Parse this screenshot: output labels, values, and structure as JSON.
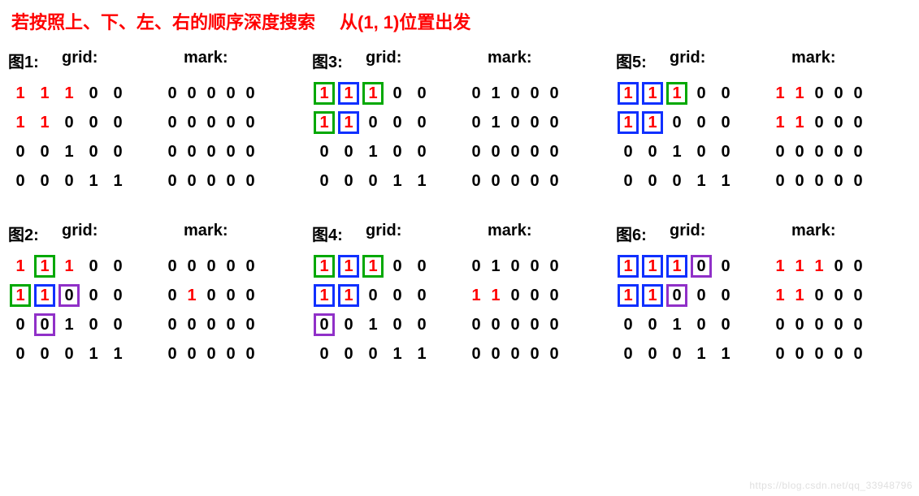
{
  "title_left": "若按照上、下、左、右的顺序深度搜索",
  "title_right": "从(1, 1)位置出发",
  "colors": {
    "text_red": "#ff0000",
    "text_black": "#000000",
    "box_green": "#00a800",
    "box_blue": "#1030ff",
    "box_purple": "#9030c8",
    "background": "#ffffff",
    "watermark": "#e0e0e0"
  },
  "watermark": "https://blog.csdn.net/qq_33948796",
  "labels": {
    "grid": "grid:",
    "mark": "mark:"
  },
  "panels": [
    {
      "fig": "图1:",
      "grid": [
        [
          {
            "v": "1",
            "c": "red"
          },
          {
            "v": "1",
            "c": "red"
          },
          {
            "v": "1",
            "c": "red"
          },
          {
            "v": "0"
          },
          {
            "v": "0"
          }
        ],
        [
          {
            "v": "1",
            "c": "red"
          },
          {
            "v": "1",
            "c": "red"
          },
          {
            "v": "0"
          },
          {
            "v": "0"
          },
          {
            "v": "0"
          }
        ],
        [
          {
            "v": "0"
          },
          {
            "v": "0"
          },
          {
            "v": "1"
          },
          {
            "v": "0"
          },
          {
            "v": "0"
          }
        ],
        [
          {
            "v": "0"
          },
          {
            "v": "0"
          },
          {
            "v": "0"
          },
          {
            "v": "1"
          },
          {
            "v": "1"
          }
        ]
      ],
      "mark": [
        [
          {
            "v": "0"
          },
          {
            "v": "0"
          },
          {
            "v": "0"
          },
          {
            "v": "0"
          },
          {
            "v": "0"
          }
        ],
        [
          {
            "v": "0"
          },
          {
            "v": "0"
          },
          {
            "v": "0"
          },
          {
            "v": "0"
          },
          {
            "v": "0"
          }
        ],
        [
          {
            "v": "0"
          },
          {
            "v": "0"
          },
          {
            "v": "0"
          },
          {
            "v": "0"
          },
          {
            "v": "0"
          }
        ],
        [
          {
            "v": "0"
          },
          {
            "v": "0"
          },
          {
            "v": "0"
          },
          {
            "v": "0"
          },
          {
            "v": "0"
          }
        ]
      ]
    },
    {
      "fig": "图3:",
      "grid": [
        [
          {
            "v": "1",
            "c": "red",
            "b": "green"
          },
          {
            "v": "1",
            "c": "red",
            "b": "blue"
          },
          {
            "v": "1",
            "c": "red",
            "b": "green"
          },
          {
            "v": "0"
          },
          {
            "v": "0"
          }
        ],
        [
          {
            "v": "1",
            "c": "red",
            "b": "green"
          },
          {
            "v": "1",
            "c": "red",
            "b": "blue"
          },
          {
            "v": "0"
          },
          {
            "v": "0"
          },
          {
            "v": "0"
          }
        ],
        [
          {
            "v": "0"
          },
          {
            "v": "0"
          },
          {
            "v": "1"
          },
          {
            "v": "0"
          },
          {
            "v": "0"
          }
        ],
        [
          {
            "v": "0"
          },
          {
            "v": "0"
          },
          {
            "v": "0"
          },
          {
            "v": "1"
          },
          {
            "v": "1"
          }
        ]
      ],
      "mark": [
        [
          {
            "v": "0"
          },
          {
            "v": "1"
          },
          {
            "v": "0"
          },
          {
            "v": "0"
          },
          {
            "v": "0"
          }
        ],
        [
          {
            "v": "0"
          },
          {
            "v": "1"
          },
          {
            "v": "0"
          },
          {
            "v": "0"
          },
          {
            "v": "0"
          }
        ],
        [
          {
            "v": "0"
          },
          {
            "v": "0"
          },
          {
            "v": "0"
          },
          {
            "v": "0"
          },
          {
            "v": "0"
          }
        ],
        [
          {
            "v": "0"
          },
          {
            "v": "0"
          },
          {
            "v": "0"
          },
          {
            "v": "0"
          },
          {
            "v": "0"
          }
        ]
      ]
    },
    {
      "fig": "图5:",
      "grid": [
        [
          {
            "v": "1",
            "c": "red",
            "b": "blue"
          },
          {
            "v": "1",
            "c": "red",
            "b": "blue"
          },
          {
            "v": "1",
            "c": "red",
            "b": "green"
          },
          {
            "v": "0"
          },
          {
            "v": "0"
          }
        ],
        [
          {
            "v": "1",
            "c": "red",
            "b": "blue"
          },
          {
            "v": "1",
            "c": "red",
            "b": "blue"
          },
          {
            "v": "0"
          },
          {
            "v": "0"
          },
          {
            "v": "0"
          }
        ],
        [
          {
            "v": "0"
          },
          {
            "v": "0"
          },
          {
            "v": "1"
          },
          {
            "v": "0"
          },
          {
            "v": "0"
          }
        ],
        [
          {
            "v": "0"
          },
          {
            "v": "0"
          },
          {
            "v": "0"
          },
          {
            "v": "1"
          },
          {
            "v": "1"
          }
        ]
      ],
      "mark": [
        [
          {
            "v": "1",
            "c": "red"
          },
          {
            "v": "1",
            "c": "red"
          },
          {
            "v": "0"
          },
          {
            "v": "0"
          },
          {
            "v": "0"
          }
        ],
        [
          {
            "v": "1",
            "c": "red"
          },
          {
            "v": "1",
            "c": "red"
          },
          {
            "v": "0"
          },
          {
            "v": "0"
          },
          {
            "v": "0"
          }
        ],
        [
          {
            "v": "0"
          },
          {
            "v": "0"
          },
          {
            "v": "0"
          },
          {
            "v": "0"
          },
          {
            "v": "0"
          }
        ],
        [
          {
            "v": "0"
          },
          {
            "v": "0"
          },
          {
            "v": "0"
          },
          {
            "v": "0"
          },
          {
            "v": "0"
          }
        ]
      ]
    },
    {
      "fig": "图2:",
      "grid": [
        [
          {
            "v": "1",
            "c": "red"
          },
          {
            "v": "1",
            "c": "red",
            "b": "green"
          },
          {
            "v": "1",
            "c": "red"
          },
          {
            "v": "0"
          },
          {
            "v": "0"
          }
        ],
        [
          {
            "v": "1",
            "c": "red",
            "b": "green"
          },
          {
            "v": "1",
            "c": "red",
            "b": "blue"
          },
          {
            "v": "0",
            "b": "purple"
          },
          {
            "v": "0"
          },
          {
            "v": "0"
          }
        ],
        [
          {
            "v": "0"
          },
          {
            "v": "0",
            "b": "purple"
          },
          {
            "v": "1"
          },
          {
            "v": "0"
          },
          {
            "v": "0"
          }
        ],
        [
          {
            "v": "0"
          },
          {
            "v": "0"
          },
          {
            "v": "0"
          },
          {
            "v": "1"
          },
          {
            "v": "1"
          }
        ]
      ],
      "mark": [
        [
          {
            "v": "0"
          },
          {
            "v": "0"
          },
          {
            "v": "0"
          },
          {
            "v": "0"
          },
          {
            "v": "0"
          }
        ],
        [
          {
            "v": "0"
          },
          {
            "v": "1",
            "c": "red"
          },
          {
            "v": "0"
          },
          {
            "v": "0"
          },
          {
            "v": "0"
          }
        ],
        [
          {
            "v": "0"
          },
          {
            "v": "0"
          },
          {
            "v": "0"
          },
          {
            "v": "0"
          },
          {
            "v": "0"
          }
        ],
        [
          {
            "v": "0"
          },
          {
            "v": "0"
          },
          {
            "v": "0"
          },
          {
            "v": "0"
          },
          {
            "v": "0"
          }
        ]
      ]
    },
    {
      "fig": "图4:",
      "grid": [
        [
          {
            "v": "1",
            "c": "red",
            "b": "green"
          },
          {
            "v": "1",
            "c": "red",
            "b": "blue"
          },
          {
            "v": "1",
            "c": "red",
            "b": "green"
          },
          {
            "v": "0"
          },
          {
            "v": "0"
          }
        ],
        [
          {
            "v": "1",
            "c": "red",
            "b": "blue"
          },
          {
            "v": "1",
            "c": "red",
            "b": "blue"
          },
          {
            "v": "0"
          },
          {
            "v": "0"
          },
          {
            "v": "0"
          }
        ],
        [
          {
            "v": "0",
            "b": "purple"
          },
          {
            "v": "0"
          },
          {
            "v": "1"
          },
          {
            "v": "0"
          },
          {
            "v": "0"
          }
        ],
        [
          {
            "v": "0"
          },
          {
            "v": "0"
          },
          {
            "v": "0"
          },
          {
            "v": "1"
          },
          {
            "v": "1"
          }
        ]
      ],
      "mark": [
        [
          {
            "v": "0"
          },
          {
            "v": "1"
          },
          {
            "v": "0"
          },
          {
            "v": "0"
          },
          {
            "v": "0"
          }
        ],
        [
          {
            "v": "1",
            "c": "red"
          },
          {
            "v": "1",
            "c": "red"
          },
          {
            "v": "0"
          },
          {
            "v": "0"
          },
          {
            "v": "0"
          }
        ],
        [
          {
            "v": "0"
          },
          {
            "v": "0"
          },
          {
            "v": "0"
          },
          {
            "v": "0"
          },
          {
            "v": "0"
          }
        ],
        [
          {
            "v": "0"
          },
          {
            "v": "0"
          },
          {
            "v": "0"
          },
          {
            "v": "0"
          },
          {
            "v": "0"
          }
        ]
      ]
    },
    {
      "fig": "图6:",
      "grid": [
        [
          {
            "v": "1",
            "c": "red",
            "b": "blue"
          },
          {
            "v": "1",
            "c": "red",
            "b": "blue"
          },
          {
            "v": "1",
            "c": "red",
            "b": "blue"
          },
          {
            "v": "0",
            "b": "purple"
          },
          {
            "v": "0"
          }
        ],
        [
          {
            "v": "1",
            "c": "red",
            "b": "blue"
          },
          {
            "v": "1",
            "c": "red",
            "b": "blue"
          },
          {
            "v": "0",
            "b": "purple"
          },
          {
            "v": "0"
          },
          {
            "v": "0"
          }
        ],
        [
          {
            "v": "0"
          },
          {
            "v": "0"
          },
          {
            "v": "1"
          },
          {
            "v": "0"
          },
          {
            "v": "0"
          }
        ],
        [
          {
            "v": "0"
          },
          {
            "v": "0"
          },
          {
            "v": "0"
          },
          {
            "v": "1"
          },
          {
            "v": "1"
          }
        ]
      ],
      "mark": [
        [
          {
            "v": "1",
            "c": "red"
          },
          {
            "v": "1",
            "c": "red"
          },
          {
            "v": "1",
            "c": "red"
          },
          {
            "v": "0"
          },
          {
            "v": "0"
          }
        ],
        [
          {
            "v": "1",
            "c": "red"
          },
          {
            "v": "1",
            "c": "red"
          },
          {
            "v": "0"
          },
          {
            "v": "0"
          },
          {
            "v": "0"
          }
        ],
        [
          {
            "v": "0"
          },
          {
            "v": "0"
          },
          {
            "v": "0"
          },
          {
            "v": "0"
          },
          {
            "v": "0"
          }
        ],
        [
          {
            "v": "0"
          },
          {
            "v": "0"
          },
          {
            "v": "0"
          },
          {
            "v": "0"
          },
          {
            "v": "0"
          }
        ]
      ]
    }
  ]
}
